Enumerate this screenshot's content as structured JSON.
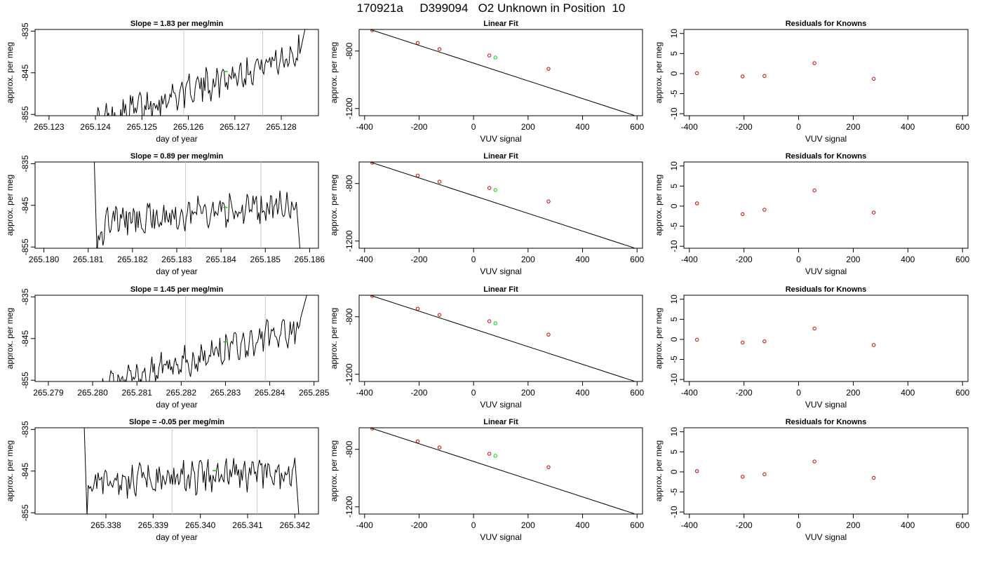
{
  "suptitle": "170921a     D399094   O2 Unknown in Position  10",
  "chart_data": [
    {
      "type": "line",
      "title": "Slope =  1.83  per meg/min",
      "xlabel": "day of year",
      "ylabel": "approx. per meg",
      "xlim": [
        265.1227,
        265.1288
      ],
      "ylim": [
        -855.3,
        -834.6
      ],
      "xticks": [
        "265.123",
        "265.124",
        "265.125",
        "265.126",
        "265.127",
        "265.128"
      ],
      "yticks": [
        "-835",
        "-845",
        "-855"
      ],
      "vlines": [
        265.1259,
        265.1276
      ],
      "mean_marker": [
        265.1268,
        -844.7
      ],
      "series_trend": {
        "x_start": 265.124,
        "x_end": 265.1284,
        "start": -857,
        "end": -840,
        "after": 265.12852,
        "after_value": -834
      }
    },
    {
      "type": "scatter",
      "title": "Linear Fit",
      "xlabel": "VUV signal",
      "ylabel": "approx. per meg",
      "xlim": [
        -420,
        620
      ],
      "ylim": [
        -1250,
        -650
      ],
      "xticks": [
        "-400",
        "-200",
        "0",
        "200",
        "400",
        "600"
      ],
      "yticks": [
        "-800",
        "-1200"
      ],
      "knowns": [
        [
          -372,
          -655
        ],
        [
          -205,
          -744
        ],
        [
          -125,
          -787
        ],
        [
          58,
          -831
        ],
        [
          275,
          -924
        ]
      ],
      "unknown": [
        80,
        -845
      ],
      "fit_line": [
        [
          -380,
          -650
        ],
        [
          590,
          -1248
        ]
      ]
    },
    {
      "type": "scatter",
      "title": "Residuals for Knowns",
      "xlabel": "VUV signal",
      "ylabel": "approx. per meg",
      "xlim": [
        -420,
        620
      ],
      "ylim": [
        -10.5,
        11
      ],
      "xticks": [
        "-400",
        "-200",
        "0",
        "200",
        "400",
        "600"
      ],
      "yticks": [
        "-10",
        "-5",
        "0",
        "5",
        "10"
      ],
      "points": [
        [
          -372,
          0.1
        ],
        [
          -205,
          -0.7
        ],
        [
          -125,
          -0.6
        ],
        [
          58,
          2.6
        ],
        [
          275,
          -1.3
        ]
      ]
    },
    {
      "type": "line",
      "title": "Slope =  0.89  per meg/min",
      "xlabel": "day of year",
      "ylabel": "approx. per meg",
      "xlim": [
        265.1798,
        265.1862
      ],
      "ylim": [
        -855.3,
        -834.6
      ],
      "xticks": [
        "265.180",
        "265.181",
        "265.182",
        "265.183",
        "265.184",
        "265.185",
        "265.186"
      ],
      "yticks": [
        "-835",
        "-845",
        "-855"
      ],
      "vlines": [
        265.1832,
        265.1849
      ],
      "mean_marker": [
        265.1841,
        -845.5
      ],
      "series_trend": {
        "x_start": 265.1812,
        "x_end": 265.1857,
        "start": -849,
        "end": -845,
        "after": 265.1858,
        "after_value": -858,
        "before_value": -834
      }
    },
    {
      "type": "scatter",
      "title": "Linear Fit",
      "xlabel": "VUV signal",
      "ylabel": "approx. per meg",
      "xlim": [
        -420,
        620
      ],
      "ylim": [
        -1250,
        -650
      ],
      "xticks": [
        "-400",
        "-200",
        "0",
        "200",
        "400",
        "600"
      ],
      "yticks": [
        "-800",
        "-1200"
      ],
      "knowns": [
        [
          -372,
          -655
        ],
        [
          -205,
          -744
        ],
        [
          -125,
          -787
        ],
        [
          58,
          -831
        ],
        [
          275,
          -924
        ]
      ],
      "unknown": [
        80,
        -845
      ],
      "fit_line": [
        [
          -380,
          -650
        ],
        [
          590,
          -1248
        ]
      ]
    },
    {
      "type": "scatter",
      "title": "Residuals for Knowns",
      "xlabel": "VUV signal",
      "ylabel": "approx. per meg",
      "xlim": [
        -420,
        620
      ],
      "ylim": [
        -10.5,
        11
      ],
      "xticks": [
        "-400",
        "-200",
        "0",
        "200",
        "400",
        "600"
      ],
      "yticks": [
        "-10",
        "-5",
        "0",
        "5",
        "10"
      ],
      "points": [
        [
          -372,
          0.7
        ],
        [
          -205,
          -2.0
        ],
        [
          -125,
          -0.9
        ],
        [
          58,
          3.9
        ],
        [
          275,
          -1.6
        ]
      ]
    },
    {
      "type": "line",
      "title": "Slope =  1.45  per meg/min",
      "xlabel": "day of year",
      "ylabel": "approx. per meg",
      "xlim": [
        265.2787,
        265.2851
      ],
      "ylim": [
        -855.3,
        -834.6
      ],
      "xticks": [
        "265.279",
        "265.280",
        "265.281",
        "265.282",
        "265.283",
        "265.284",
        "265.285"
      ],
      "yticks": [
        "-835",
        "-845",
        "-855"
      ],
      "vlines": [
        265.2821,
        265.2839
      ],
      "mean_marker": [
        265.283,
        -845.8
      ],
      "series_trend": {
        "x_start": 265.2802,
        "x_end": 265.2847,
        "start": -857,
        "end": -842,
        "after": 265.28485,
        "after_value": -834
      }
    },
    {
      "type": "scatter",
      "title": "Linear Fit",
      "xlabel": "VUV signal",
      "ylabel": "approx. per meg",
      "xlim": [
        -420,
        620
      ],
      "ylim": [
        -1250,
        -650
      ],
      "xticks": [
        "-400",
        "-200",
        "0",
        "200",
        "400",
        "600"
      ],
      "yticks": [
        "-800",
        "-1200"
      ],
      "knowns": [
        [
          -372,
          -655
        ],
        [
          -205,
          -744
        ],
        [
          -125,
          -787
        ],
        [
          58,
          -831
        ],
        [
          275,
          -924
        ]
      ],
      "unknown": [
        80,
        -845
      ],
      "fit_line": [
        [
          -380,
          -650
        ],
        [
          590,
          -1248
        ]
      ]
    },
    {
      "type": "scatter",
      "title": "Residuals for Knowns",
      "xlabel": "VUV signal",
      "ylabel": "approx. per meg",
      "xlim": [
        -420,
        620
      ],
      "ylim": [
        -10.5,
        11
      ],
      "xticks": [
        "-400",
        "-200",
        "0",
        "200",
        "400",
        "600"
      ],
      "yticks": [
        "-10",
        "-5",
        "0",
        "5",
        "10"
      ],
      "points": [
        [
          -372,
          -0.1
        ],
        [
          -205,
          -0.8
        ],
        [
          -125,
          -0.5
        ],
        [
          58,
          2.7
        ],
        [
          275,
          -1.4
        ]
      ]
    },
    {
      "type": "line",
      "title": "Slope =  -0.05  per meg/min",
      "xlabel": "day of year",
      "ylabel": "approx. per meg",
      "xlim": [
        265.3365,
        265.3425
      ],
      "ylim": [
        -855.3,
        -834.6
      ],
      "xticks": [
        "265.338",
        "265.339",
        "265.340",
        "265.341",
        "265.342"
      ],
      "yticks": [
        "-835",
        "-845",
        "-855"
      ],
      "vlines": [
        265.3394,
        265.3412
      ],
      "mean_marker": [
        265.3403,
        -844.9
      ],
      "series_trend": {
        "x_start": 265.3376,
        "x_end": 265.342,
        "start": -848,
        "end": -845,
        "after": 265.3421,
        "after_value": -858,
        "before_value": -834
      }
    },
    {
      "type": "scatter",
      "title": "Linear Fit",
      "xlabel": "VUV signal",
      "ylabel": "approx. per meg",
      "xlim": [
        -420,
        620
      ],
      "ylim": [
        -1250,
        -650
      ],
      "xticks": [
        "-400",
        "-200",
        "0",
        "200",
        "400",
        "600"
      ],
      "yticks": [
        "-800",
        "-1200"
      ],
      "knowns": [
        [
          -372,
          -655
        ],
        [
          -205,
          -744
        ],
        [
          -125,
          -787
        ],
        [
          58,
          -831
        ],
        [
          275,
          -924
        ]
      ],
      "unknown": [
        80,
        -845
      ],
      "fit_line": [
        [
          -380,
          -650
        ],
        [
          590,
          -1248
        ]
      ]
    },
    {
      "type": "scatter",
      "title": "Residuals for Knowns",
      "xlabel": "VUV signal",
      "ylabel": "approx. per meg",
      "xlim": [
        -420,
        620
      ],
      "ylim": [
        -10.5,
        11
      ],
      "xticks": [
        "-400",
        "-200",
        "0",
        "200",
        "400",
        "600"
      ],
      "yticks": [
        "-10",
        "-5",
        "0",
        "5",
        "10"
      ],
      "points": [
        [
          -372,
          0.2
        ],
        [
          -205,
          -1.2
        ],
        [
          -125,
          -0.6
        ],
        [
          58,
          2.6
        ],
        [
          275,
          -1.5
        ]
      ]
    }
  ],
  "colors": {
    "known_points": "#cc0000",
    "unknown_point": "#00cc00",
    "vlines": "#c8c8c8",
    "series": "#000000"
  }
}
